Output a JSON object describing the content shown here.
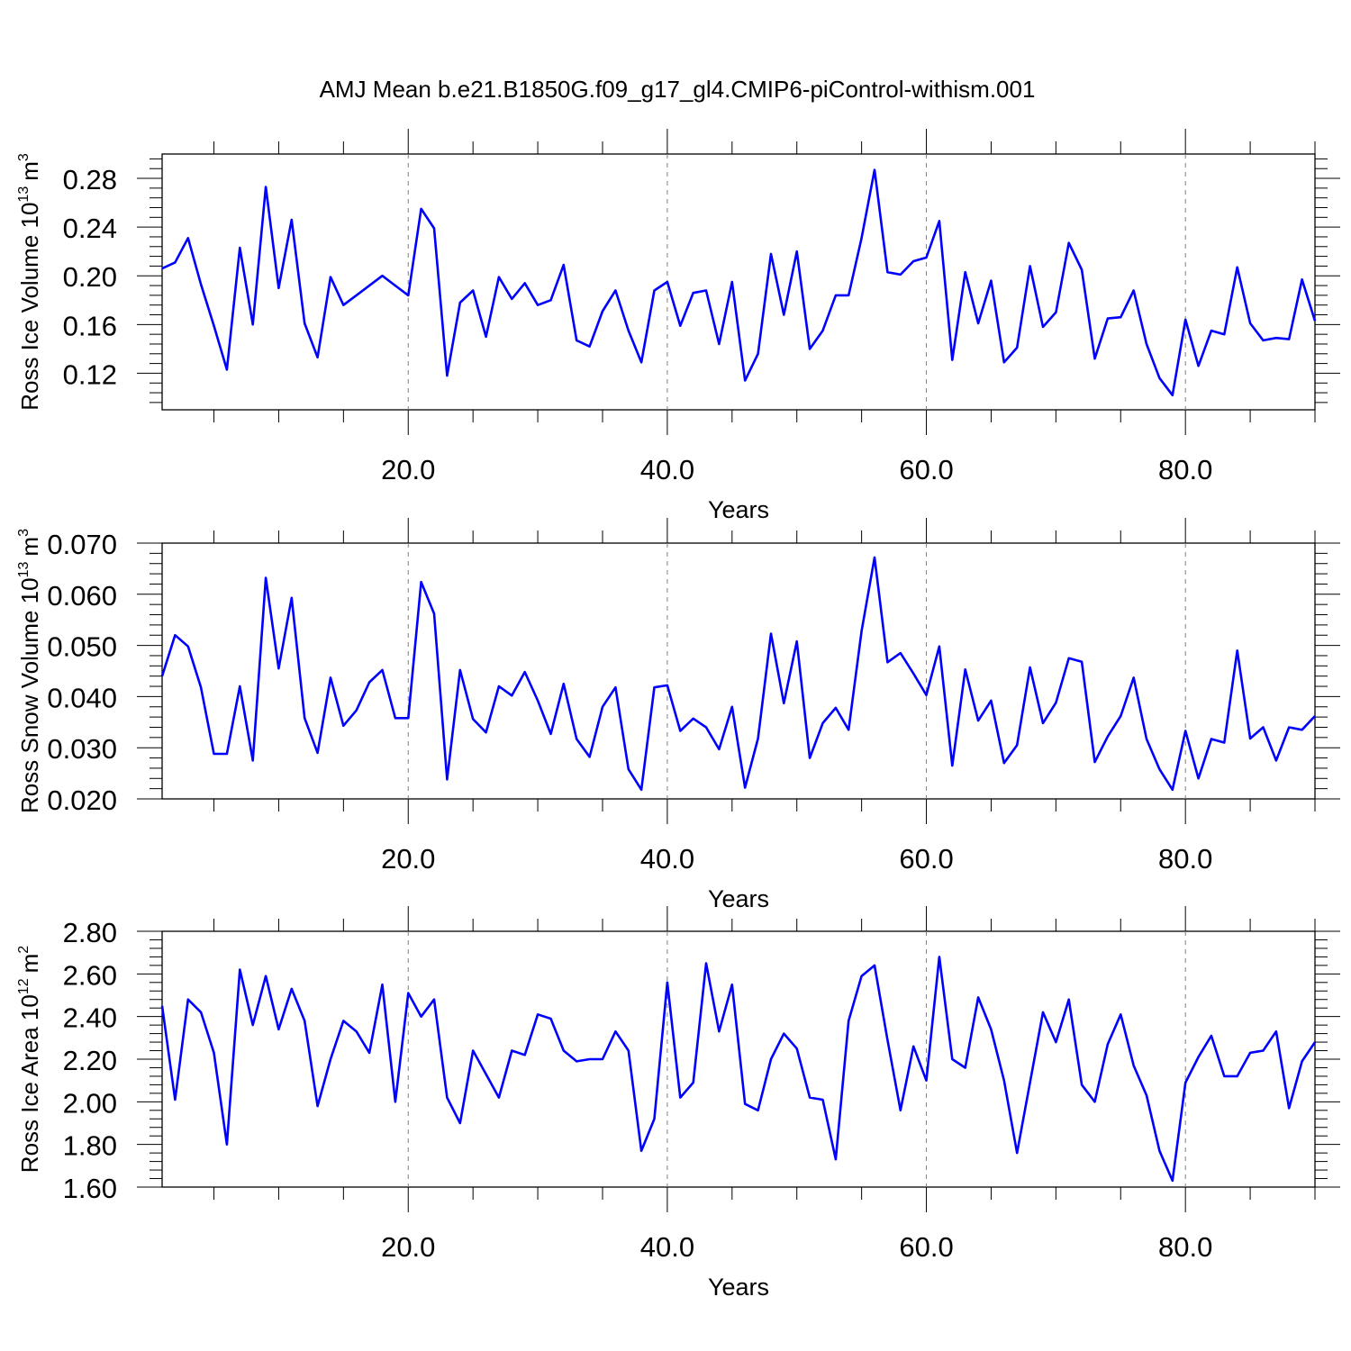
{
  "figure": {
    "title": "AMJ Mean b.e21.B1850G.f09_g17_gl4.CMIP6-piControl-withism.001"
  },
  "colors": {
    "line": "#0000ff",
    "axis": "#000000",
    "grid": "#808080",
    "background": "#ffffff"
  },
  "chart_data": [
    {
      "type": "line",
      "xlabel": "Years",
      "ylabel": {
        "text": "Ross Ice Volume 10",
        "exponent": "13",
        "unit": "m",
        "unit_exponent": "3"
      },
      "xlim": [
        1,
        90
      ],
      "ylim": [
        0.09,
        0.3
      ],
      "xticks": [
        20,
        40,
        60,
        80
      ],
      "xtick_labels": [
        "20.0",
        "40.0",
        "60.0",
        "80.0"
      ],
      "yticks": [
        0.12,
        0.16,
        0.2,
        0.24,
        0.28
      ],
      "ytick_labels": [
        "0.12",
        "0.16",
        "0.20",
        "0.24",
        "0.28"
      ],
      "x_gridlines": true,
      "x": [
        1,
        2,
        3,
        4,
        5,
        6,
        7,
        8,
        9,
        10,
        11,
        12,
        13,
        14,
        15,
        16,
        17,
        18,
        19,
        20,
        21,
        22,
        23,
        24,
        25,
        26,
        27,
        28,
        29,
        30,
        31,
        32,
        33,
        34,
        35,
        36,
        37,
        38,
        39,
        40,
        41,
        42,
        43,
        44,
        45,
        46,
        47,
        48,
        49,
        50,
        51,
        52,
        53,
        54,
        55,
        56,
        57,
        58,
        59,
        60,
        61,
        62,
        63,
        64,
        65,
        66,
        67,
        68,
        69,
        70,
        71,
        72,
        73,
        74,
        75,
        76,
        77,
        78,
        79,
        80,
        81,
        82,
        83,
        84,
        85,
        86,
        87,
        88,
        89,
        90
      ],
      "series": [
        {
          "values": [
            0.206,
            0.211,
            0.231,
            0.193,
            0.159,
            0.123,
            0.223,
            0.16,
            0.273,
            0.19,
            0.246,
            0.161,
            0.133,
            0.199,
            0.176,
            0.184,
            0.192,
            0.2,
            0.192,
            0.184,
            0.255,
            0.239,
            0.118,
            0.178,
            0.188,
            0.15,
            0.199,
            0.181,
            0.194,
            0.176,
            0.18,
            0.209,
            0.147,
            0.142,
            0.171,
            0.188,
            0.155,
            0.129,
            0.188,
            0.195,
            0.159,
            0.186,
            0.188,
            0.144,
            0.195,
            0.114,
            0.136,
            0.218,
            0.168,
            0.22,
            0.14,
            0.155,
            0.184,
            0.184,
            0.231,
            0.287,
            0.203,
            0.201,
            0.212,
            0.215,
            0.245,
            0.131,
            0.203,
            0.161,
            0.196,
            0.129,
            0.141,
            0.208,
            0.158,
            0.17,
            0.227,
            0.205,
            0.132,
            0.165,
            0.166,
            0.188,
            0.144,
            0.116,
            0.102,
            0.164,
            0.126,
            0.155,
            0.152,
            0.207,
            0.161,
            0.147,
            0.149,
            0.148,
            0.197,
            0.163
          ]
        }
      ]
    },
    {
      "type": "line",
      "xlabel": "Years",
      "ylabel": {
        "text": "Ross Snow Volume 10",
        "exponent": "13",
        "unit": "m",
        "unit_exponent": "3"
      },
      "xlim": [
        1,
        90
      ],
      "ylim": [
        0.02,
        0.07
      ],
      "xticks": [
        20,
        40,
        60,
        80
      ],
      "xtick_labels": [
        "20.0",
        "40.0",
        "60.0",
        "80.0"
      ],
      "yticks": [
        0.02,
        0.03,
        0.04,
        0.05,
        0.06,
        0.07
      ],
      "ytick_labels": [
        "0.020",
        "0.030",
        "0.040",
        "0.050",
        "0.060",
        "0.070"
      ],
      "x_gridlines": true,
      "x": [
        1,
        2,
        3,
        4,
        5,
        6,
        7,
        8,
        9,
        10,
        11,
        12,
        13,
        14,
        15,
        16,
        17,
        18,
        19,
        20,
        21,
        22,
        23,
        24,
        25,
        26,
        27,
        28,
        29,
        30,
        31,
        32,
        33,
        34,
        35,
        36,
        37,
        38,
        39,
        40,
        41,
        42,
        43,
        44,
        45,
        46,
        47,
        48,
        49,
        50,
        51,
        52,
        53,
        54,
        55,
        56,
        57,
        58,
        59,
        60,
        61,
        62,
        63,
        64,
        65,
        66,
        67,
        68,
        69,
        70,
        71,
        72,
        73,
        74,
        75,
        76,
        77,
        78,
        79,
        80,
        81,
        82,
        83,
        84,
        85,
        86,
        87,
        88,
        89,
        90
      ],
      "series": [
        {
          "values": [
            0.044,
            0.052,
            0.0498,
            0.0418,
            0.0288,
            0.0288,
            0.042,
            0.0275,
            0.0632,
            0.0455,
            0.0593,
            0.0358,
            0.029,
            0.0437,
            0.0343,
            0.0373,
            0.0428,
            0.0452,
            0.0358,
            0.0358,
            0.0624,
            0.0562,
            0.0238,
            0.0452,
            0.0356,
            0.033,
            0.042,
            0.0402,
            0.0448,
            0.0392,
            0.0327,
            0.0425,
            0.0317,
            0.0282,
            0.038,
            0.0418,
            0.0258,
            0.0218,
            0.0418,
            0.0422,
            0.0333,
            0.0357,
            0.034,
            0.0297,
            0.038,
            0.0222,
            0.0318,
            0.0523,
            0.0387,
            0.0508,
            0.028,
            0.0348,
            0.0378,
            0.0335,
            0.0528,
            0.0672,
            0.0467,
            0.0485,
            0.0445,
            0.0403,
            0.0498,
            0.0265,
            0.0453,
            0.0353,
            0.0392,
            0.027,
            0.0305,
            0.0457,
            0.0348,
            0.0388,
            0.0475,
            0.0468,
            0.0272,
            0.0322,
            0.0362,
            0.0437,
            0.0317,
            0.0258,
            0.0218,
            0.0333,
            0.024,
            0.0317,
            0.031,
            0.049,
            0.0318,
            0.034,
            0.0275,
            0.034,
            0.0335,
            0.0362
          ]
        }
      ]
    },
    {
      "type": "line",
      "xlabel": "Years",
      "ylabel": {
        "text": "Ross Ice Area 10",
        "exponent": "12",
        "unit": "m",
        "unit_exponent": "2"
      },
      "xlim": [
        1,
        90
      ],
      "ylim": [
        1.6,
        2.8
      ],
      "xticks": [
        20,
        40,
        60,
        80
      ],
      "xtick_labels": [
        "20.0",
        "40.0",
        "60.0",
        "80.0"
      ],
      "yticks": [
        1.6,
        1.8,
        2.0,
        2.2,
        2.4,
        2.6,
        2.8
      ],
      "ytick_labels": [
        "1.60",
        "1.80",
        "2.00",
        "2.20",
        "2.40",
        "2.60",
        "2.80"
      ],
      "x_gridlines": true,
      "x": [
        1,
        2,
        3,
        4,
        5,
        6,
        7,
        8,
        9,
        10,
        11,
        12,
        13,
        14,
        15,
        16,
        17,
        18,
        19,
        20,
        21,
        22,
        23,
        24,
        25,
        26,
        27,
        28,
        29,
        30,
        31,
        32,
        33,
        34,
        35,
        36,
        37,
        38,
        39,
        40,
        41,
        42,
        43,
        44,
        45,
        46,
        47,
        48,
        49,
        50,
        51,
        52,
        53,
        54,
        55,
        56,
        57,
        58,
        59,
        60,
        61,
        62,
        63,
        64,
        65,
        66,
        67,
        68,
        69,
        70,
        71,
        72,
        73,
        74,
        75,
        76,
        77,
        78,
        79,
        80,
        81,
        82,
        83,
        84,
        85,
        86,
        87,
        88,
        89,
        90
      ],
      "series": [
        {
          "values": [
            2.45,
            2.01,
            2.48,
            2.42,
            2.23,
            1.8,
            2.62,
            2.36,
            2.59,
            2.34,
            2.53,
            2.38,
            1.98,
            2.2,
            2.38,
            2.33,
            2.23,
            2.55,
            2.0,
            2.51,
            2.4,
            2.48,
            2.02,
            1.9,
            2.24,
            2.13,
            2.02,
            2.24,
            2.22,
            2.41,
            2.39,
            2.24,
            2.19,
            2.2,
            2.2,
            2.33,
            2.24,
            1.77,
            1.92,
            2.56,
            2.02,
            2.09,
            2.65,
            2.33,
            2.55,
            1.99,
            1.96,
            2.2,
            2.32,
            2.25,
            2.02,
            2.01,
            1.73,
            2.38,
            2.59,
            2.64,
            2.29,
            1.96,
            2.26,
            2.1,
            2.68,
            2.2,
            2.16,
            2.49,
            2.34,
            2.1,
            1.76,
            2.09,
            2.42,
            2.28,
            2.48,
            2.08,
            2.0,
            2.27,
            2.41,
            2.17,
            2.03,
            1.77,
            1.63,
            2.09,
            2.21,
            2.31,
            2.12,
            2.12,
            2.23,
            2.24,
            2.33,
            1.97,
            2.19,
            2.28
          ]
        }
      ]
    }
  ]
}
